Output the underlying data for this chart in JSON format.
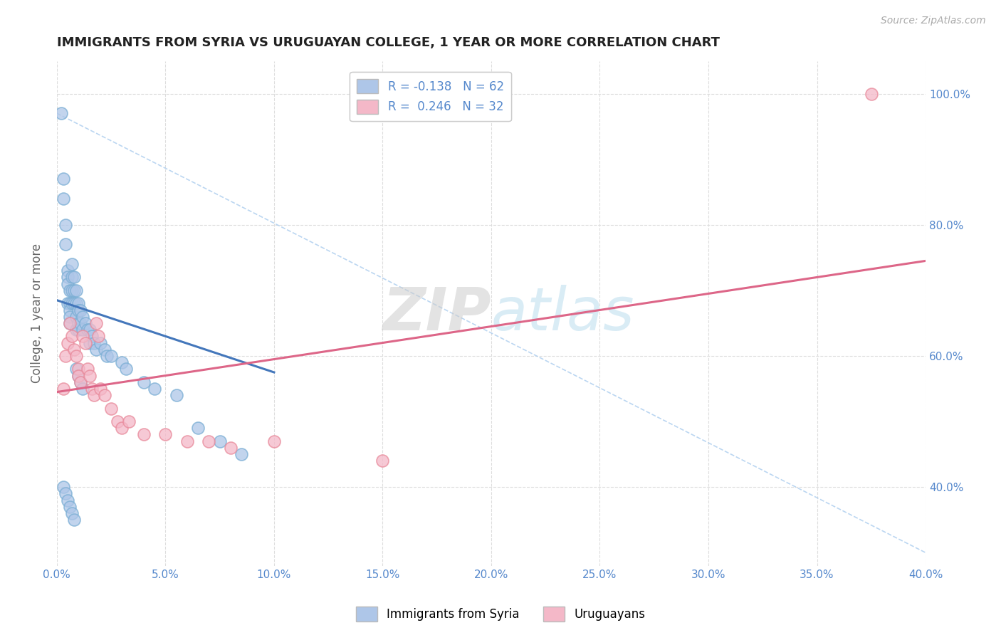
{
  "title": "IMMIGRANTS FROM SYRIA VS URUGUAYAN COLLEGE, 1 YEAR OR MORE CORRELATION CHART",
  "source_text": "Source: ZipAtlas.com",
  "ylabel": "College, 1 year or more",
  "xlim": [
    0.0,
    0.4
  ],
  "ylim": [
    0.28,
    1.05
  ],
  "xticks": [
    0.0,
    0.05,
    0.1,
    0.15,
    0.2,
    0.25,
    0.3,
    0.35,
    0.4
  ],
  "yticks_right": [
    0.4,
    0.6,
    0.8,
    1.0
  ],
  "yticks_right_labels": [
    "40.0%",
    "60.0%",
    "80.0%",
    "100.0%"
  ],
  "xtick_labels": [
    "0.0%",
    "5.0%",
    "10.0%",
    "15.0%",
    "20.0%",
    "25.0%",
    "30.0%",
    "35.0%",
    "40.0%"
  ],
  "legend_entries": [
    {
      "label": "R = -0.138   N = 62",
      "color": "#aec6e8"
    },
    {
      "label": "R =  0.246   N = 32",
      "color": "#f4b8c8"
    }
  ],
  "legend_bottom": [
    {
      "label": "Immigrants from Syria",
      "color": "#aec6e8"
    },
    {
      "label": "Uruguayans",
      "color": "#f4b8c8"
    }
  ],
  "blue_scatter_x": [
    0.002,
    0.003,
    0.003,
    0.004,
    0.004,
    0.005,
    0.005,
    0.005,
    0.005,
    0.006,
    0.006,
    0.006,
    0.006,
    0.006,
    0.007,
    0.007,
    0.007,
    0.007,
    0.008,
    0.008,
    0.008,
    0.009,
    0.009,
    0.009,
    0.009,
    0.01,
    0.01,
    0.01,
    0.01,
    0.011,
    0.011,
    0.012,
    0.012,
    0.013,
    0.014,
    0.015,
    0.015,
    0.016,
    0.017,
    0.018,
    0.02,
    0.022,
    0.023,
    0.025,
    0.03,
    0.032,
    0.04,
    0.045,
    0.055,
    0.065,
    0.075,
    0.085,
    0.009,
    0.01,
    0.011,
    0.012,
    0.003,
    0.004,
    0.005,
    0.006,
    0.007,
    0.008
  ],
  "blue_scatter_y": [
    0.97,
    0.87,
    0.84,
    0.8,
    0.77,
    0.73,
    0.72,
    0.71,
    0.68,
    0.7,
    0.68,
    0.67,
    0.66,
    0.65,
    0.74,
    0.72,
    0.7,
    0.68,
    0.72,
    0.7,
    0.68,
    0.7,
    0.68,
    0.66,
    0.64,
    0.68,
    0.67,
    0.65,
    0.64,
    0.67,
    0.65,
    0.66,
    0.64,
    0.65,
    0.64,
    0.64,
    0.62,
    0.63,
    0.62,
    0.61,
    0.62,
    0.61,
    0.6,
    0.6,
    0.59,
    0.58,
    0.56,
    0.55,
    0.54,
    0.49,
    0.47,
    0.45,
    0.58,
    0.57,
    0.56,
    0.55,
    0.4,
    0.39,
    0.38,
    0.37,
    0.36,
    0.35
  ],
  "pink_scatter_x": [
    0.003,
    0.004,
    0.005,
    0.006,
    0.007,
    0.008,
    0.009,
    0.01,
    0.01,
    0.011,
    0.012,
    0.013,
    0.014,
    0.015,
    0.016,
    0.017,
    0.018,
    0.019,
    0.02,
    0.022,
    0.025,
    0.028,
    0.03,
    0.033,
    0.04,
    0.05,
    0.06,
    0.07,
    0.08,
    0.1,
    0.15,
    0.375
  ],
  "pink_scatter_y": [
    0.55,
    0.6,
    0.62,
    0.65,
    0.63,
    0.61,
    0.6,
    0.58,
    0.57,
    0.56,
    0.63,
    0.62,
    0.58,
    0.57,
    0.55,
    0.54,
    0.65,
    0.63,
    0.55,
    0.54,
    0.52,
    0.5,
    0.49,
    0.5,
    0.48,
    0.48,
    0.47,
    0.47,
    0.46,
    0.47,
    0.44,
    1.0
  ],
  "blue_line_x": [
    0.0,
    0.1
  ],
  "blue_line_y": [
    0.685,
    0.575
  ],
  "pink_line_x": [
    0.0,
    0.4
  ],
  "pink_line_y": [
    0.545,
    0.745
  ],
  "diag_line_x": [
    0.0,
    0.4
  ],
  "diag_line_y": [
    0.97,
    0.3
  ],
  "watermark_line1": "ZIP",
  "watermark_line2": "atlas",
  "bg_color": "#ffffff",
  "title_color": "#222222",
  "blue_color": "#aec6e8",
  "pink_color": "#f4b8c8",
  "blue_edge": "#7aaed4",
  "pink_edge": "#e8899a",
  "blue_line_color": "#4477bb",
  "pink_line_color": "#dd6688",
  "diag_line_color": "#aaccee",
  "grid_color": "#dddddd",
  "axis_label_color": "#5588cc",
  "right_tick_color": "#5588cc"
}
